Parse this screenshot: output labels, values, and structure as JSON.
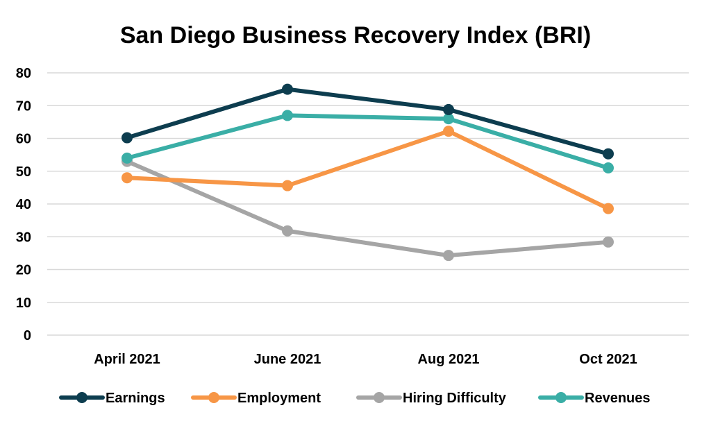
{
  "chart_data": {
    "type": "line",
    "title": "San Diego Business Recovery Index (BRI)",
    "categories": [
      "April 2021",
      "June 2021",
      "Aug 2021",
      "Oct 2021"
    ],
    "ylim": [
      0,
      80
    ],
    "yticks": [
      "0",
      "10",
      "20",
      "30",
      "40",
      "50",
      "60",
      "70",
      "80"
    ],
    "grid": true,
    "legend": "bottom",
    "series": [
      {
        "name": "Earnings",
        "color": "#0d3d4f",
        "values": [
          60.2,
          75.0,
          68.8,
          55.3
        ]
      },
      {
        "name": "Employment",
        "color": "#f79646",
        "values": [
          48.0,
          45.6,
          62.2,
          38.6
        ]
      },
      {
        "name": "Hiring Difficulty",
        "color": "#a5a5a5",
        "values": [
          53.0,
          31.8,
          24.3,
          28.4
        ]
      },
      {
        "name": "Revenues",
        "color": "#3aaea6",
        "values": [
          54.0,
          67.0,
          66.0,
          51.0
        ]
      }
    ]
  }
}
